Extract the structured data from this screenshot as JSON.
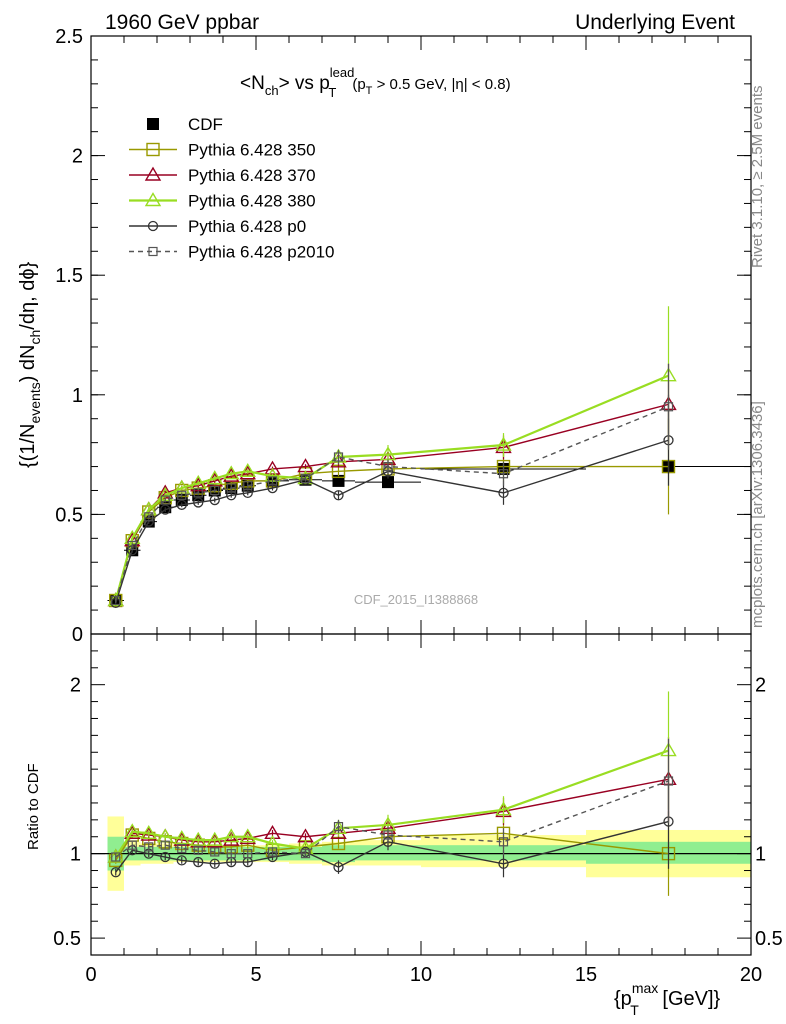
{
  "header": {
    "left": "1960 GeV ppbar",
    "right": "Underlying Event"
  },
  "side_labels": {
    "rivet": "Rivet 3.1.10, ≥ 2.5M events",
    "mcplots": "mcplots.cern.ch [arXiv:1306.3436]"
  },
  "watermark": "CDF_2015_I1388868",
  "chart_data": [
    {
      "type": "scatter",
      "title_parts": {
        "a": "<N",
        "a_sub": "ch",
        "b": "> vs p",
        "b_sup": "lead",
        "b_sub": "T",
        "c": "(p",
        "c_sub": "T",
        "d": " > 0.5 GeV, |η| < 0.8)"
      },
      "ylabel_parts": {
        "a": "{(1/N",
        "a_sub": "events",
        "b": ") dN",
        "b_sub": "ch",
        "c": "/dη, dϕ}"
      },
      "xlim": [
        0,
        20
      ],
      "ylim": [
        0,
        2.5
      ],
      "yticks": [
        "0",
        "0.5",
        "1",
        "1.5",
        "2",
        "2.5"
      ],
      "yticks_values": [
        0,
        0.5,
        1,
        1.5,
        2,
        2.5
      ],
      "x": [
        0.75,
        1.25,
        1.75,
        2.25,
        2.75,
        3.25,
        3.75,
        4.25,
        4.75,
        5.5,
        6.5,
        7.5,
        9.0,
        12.5,
        17.5
      ],
      "xerr_low": [
        0.25,
        0.25,
        0.25,
        0.25,
        0.25,
        0.25,
        0.25,
        0.25,
        0.25,
        0.5,
        0.5,
        0.5,
        1.0,
        2.5,
        2.5
      ],
      "legend_position": "top-left",
      "series": [
        {
          "name": "CDF",
          "color": "#000000",
          "marker": "square-filled",
          "line": "none",
          "values": [
            0.14,
            0.35,
            0.47,
            0.53,
            0.56,
            0.58,
            0.6,
            0.61,
            0.62,
            0.64,
            0.645,
            0.64,
            0.635,
            0.69,
            0.7
          ],
          "err": [
            0.01,
            0.01,
            0.01,
            0.01,
            0.01,
            0.01,
            0.01,
            0.01,
            0.01,
            0.01,
            0.01,
            0.02,
            0.02,
            0.02,
            0.03
          ]
        },
        {
          "name": "Pythia 6.428 350",
          "color": "#999900",
          "marker": "square-open",
          "line": "solid",
          "values": [
            0.14,
            0.39,
            0.51,
            0.57,
            0.6,
            0.61,
            0.62,
            0.63,
            0.64,
            0.64,
            0.67,
            0.68,
            0.69,
            0.7,
            0.7
          ],
          "err": [
            0.01,
            0.01,
            0.01,
            0.01,
            0.01,
            0.01,
            0.01,
            0.01,
            0.01,
            0.01,
            0.01,
            0.02,
            0.03,
            0.06,
            0.2
          ]
        },
        {
          "name": "Pythia 6.428 370",
          "color": "#990022",
          "marker": "triangle-open",
          "line": "solid",
          "values": [
            0.14,
            0.39,
            0.52,
            0.59,
            0.61,
            0.62,
            0.64,
            0.66,
            0.67,
            0.69,
            0.7,
            0.72,
            0.73,
            0.78,
            0.96
          ],
          "err": [
            0.01,
            0.01,
            0.01,
            0.01,
            0.01,
            0.01,
            0.01,
            0.01,
            0.01,
            0.01,
            0.01,
            0.02,
            0.03,
            0.05,
            0.17
          ]
        },
        {
          "name": "Pythia 6.428 380",
          "color": "#99dd22",
          "marker": "triangle-open",
          "line": "solid",
          "values": [
            0.14,
            0.4,
            0.52,
            0.58,
            0.61,
            0.63,
            0.65,
            0.67,
            0.68,
            0.66,
            0.65,
            0.74,
            0.75,
            0.79,
            1.08
          ],
          "err": [
            0.01,
            0.01,
            0.01,
            0.01,
            0.01,
            0.01,
            0.01,
            0.01,
            0.01,
            0.01,
            0.01,
            0.03,
            0.04,
            0.05,
            0.29
          ]
        },
        {
          "name": "Pythia 6.428 p0",
          "color": "#333333",
          "marker": "circle-open",
          "line": "solid",
          "values": [
            0.13,
            0.35,
            0.47,
            0.52,
            0.54,
            0.55,
            0.56,
            0.58,
            0.59,
            0.61,
            0.645,
            0.58,
            0.68,
            0.59,
            0.81
          ],
          "err": [
            0.01,
            0.01,
            0.01,
            0.01,
            0.01,
            0.01,
            0.01,
            0.01,
            0.01,
            0.01,
            0.01,
            0.02,
            0.03,
            0.05,
            0.19
          ]
        },
        {
          "name": "Pythia 6.428 p2010",
          "color": "#555555",
          "marker": "square-open-small",
          "line": "dashed",
          "values": [
            0.14,
            0.37,
            0.49,
            0.56,
            0.58,
            0.59,
            0.6,
            0.61,
            0.62,
            0.64,
            0.65,
            0.74,
            0.7,
            0.67,
            0.95
          ],
          "err": [
            0.01,
            0.01,
            0.01,
            0.01,
            0.01,
            0.01,
            0.01,
            0.01,
            0.01,
            0.01,
            0.01,
            0.03,
            0.03,
            0.05,
            0.18
          ]
        }
      ]
    },
    {
      "type": "scatter",
      "ylabel": "Ratio to CDF",
      "xlabel_parts": {
        "a": "{p",
        "a_sup": "max",
        "a_sub": "T",
        "b": " [GeV]}"
      },
      "xlim": [
        0,
        20
      ],
      "ylim": [
        0.4,
        2.3
      ],
      "yticks": [
        "0.5",
        "1",
        "2"
      ],
      "yticks_values": [
        0.5,
        1,
        2
      ],
      "xticks": [
        "0",
        "5",
        "10",
        "15",
        "20"
      ],
      "xticks_values": [
        0,
        5,
        10,
        15,
        20
      ],
      "band_colors": {
        "inner": "#90ee90",
        "outer": "#ffff99"
      },
      "bands": {
        "x_low": [
          0.5,
          1.0,
          1.5,
          2.0,
          2.5,
          3.0,
          3.5,
          4.0,
          4.5,
          5.0,
          6.0,
          7.0,
          8.0,
          10.0,
          15.0
        ],
        "x_high": [
          1.0,
          1.5,
          2.0,
          2.5,
          3.0,
          3.5,
          4.0,
          4.5,
          5.0,
          6.0,
          7.0,
          8.0,
          10.0,
          15.0,
          20.0
        ],
        "inner_low": [
          0.9,
          0.96,
          0.96,
          0.96,
          0.96,
          0.96,
          0.96,
          0.96,
          0.96,
          0.96,
          0.96,
          0.95,
          0.96,
          0.96,
          0.94
        ],
        "inner_high": [
          1.1,
          1.04,
          1.04,
          1.04,
          1.04,
          1.04,
          1.04,
          1.04,
          1.04,
          1.04,
          1.04,
          1.05,
          1.05,
          1.05,
          1.07
        ],
        "outer_low": [
          0.78,
          0.93,
          0.94,
          0.94,
          0.95,
          0.95,
          0.95,
          0.95,
          0.95,
          0.95,
          0.94,
          0.93,
          0.93,
          0.92,
          0.86
        ],
        "outer_high": [
          1.22,
          1.07,
          1.06,
          1.06,
          1.05,
          1.05,
          1.05,
          1.05,
          1.05,
          1.05,
          1.06,
          1.07,
          1.08,
          1.11,
          1.14
        ]
      },
      "series": [
        {
          "name": "Pythia 6.428 350",
          "values": [
            0.96,
            1.11,
            1.09,
            1.07,
            1.06,
            1.05,
            1.04,
            1.04,
            1.05,
            1.02,
            1.04,
            1.06,
            1.1,
            1.12,
            1.0
          ],
          "err": [
            0.02,
            0.02,
            0.02,
            0.02,
            0.02,
            0.02,
            0.02,
            0.02,
            0.02,
            0.02,
            0.02,
            0.03,
            0.05,
            0.09,
            0.25
          ]
        },
        {
          "name": "Pythia 6.428 370",
          "values": [
            0.98,
            1.12,
            1.11,
            1.1,
            1.08,
            1.07,
            1.07,
            1.08,
            1.09,
            1.12,
            1.1,
            1.12,
            1.15,
            1.25,
            1.44
          ],
          "err": [
            0.02,
            0.02,
            0.02,
            0.02,
            0.02,
            0.02,
            0.02,
            0.02,
            0.02,
            0.02,
            0.02,
            0.03,
            0.05,
            0.08,
            0.25
          ]
        },
        {
          "name": "Pythia 6.428 380",
          "values": [
            0.98,
            1.13,
            1.12,
            1.1,
            1.09,
            1.08,
            1.08,
            1.1,
            1.1,
            1.06,
            1.03,
            1.15,
            1.17,
            1.26,
            1.61
          ],
          "err": [
            0.02,
            0.02,
            0.02,
            0.02,
            0.02,
            0.02,
            0.02,
            0.02,
            0.02,
            0.02,
            0.02,
            0.05,
            0.06,
            0.08,
            0.35
          ]
        },
        {
          "name": "Pythia 6.428 p0",
          "values": [
            0.89,
            1.02,
            1.0,
            0.98,
            0.96,
            0.95,
            0.94,
            0.95,
            0.95,
            0.98,
            1.01,
            0.92,
            1.07,
            0.94,
            1.19
          ],
          "err": [
            0.02,
            0.02,
            0.02,
            0.02,
            0.02,
            0.02,
            0.02,
            0.02,
            0.02,
            0.02,
            0.02,
            0.04,
            0.05,
            0.08,
            0.28
          ]
        },
        {
          "name": "Pythia 6.428 p2010",
          "values": [
            0.98,
            1.05,
            1.04,
            1.05,
            1.03,
            1.02,
            1.01,
            1.0,
            1.0,
            1.01,
            1.0,
            1.16,
            1.11,
            1.07,
            1.43
          ],
          "err": [
            0.02,
            0.02,
            0.02,
            0.02,
            0.02,
            0.02,
            0.02,
            0.02,
            0.02,
            0.02,
            0.02,
            0.04,
            0.05,
            0.08,
            0.25
          ]
        }
      ]
    }
  ]
}
